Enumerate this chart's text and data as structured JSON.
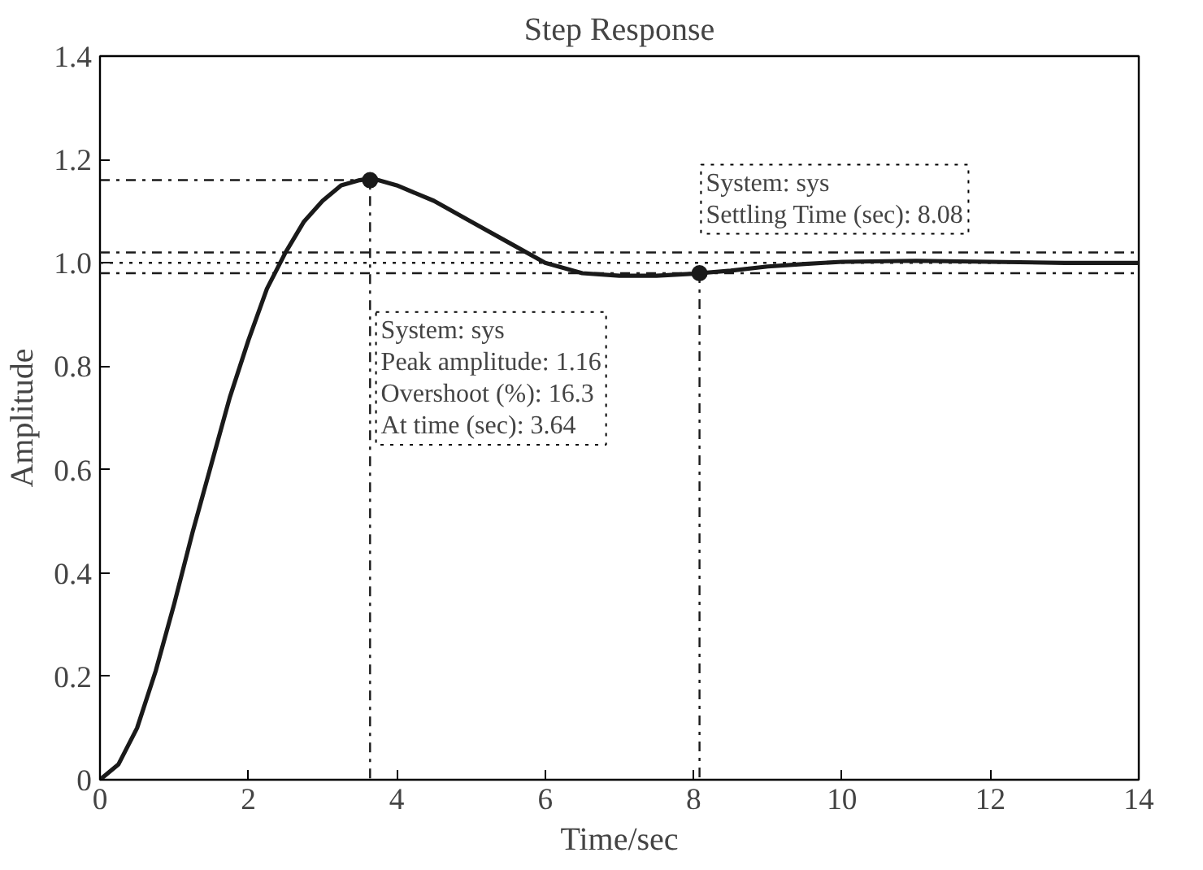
{
  "chart_data": {
    "type": "line",
    "title": "Step Response",
    "xlabel": "Time/sec",
    "ylabel": "Amplitude",
    "x": [
      0,
      0.25,
      0.5,
      0.75,
      1,
      1.25,
      1.5,
      1.75,
      2,
      2.25,
      2.5,
      2.75,
      3,
      3.25,
      3.5,
      3.64,
      3.75,
      4,
      4.5,
      5,
      5.5,
      6,
      6.5,
      7,
      7.5,
      8,
      8.08,
      8.5,
      9,
      9.5,
      10,
      11,
      12,
      13,
      14
    ],
    "series": [
      {
        "color": "#1a1a1a",
        "values": [
          0,
          0.03,
          0.1,
          0.21,
          0.34,
          0.48,
          0.61,
          0.74,
          0.85,
          0.95,
          1.02,
          1.08,
          1.12,
          1.15,
          1.16,
          1.163,
          1.16,
          1.15,
          1.12,
          1.08,
          1.04,
          1.0,
          0.98,
          0.975,
          0.975,
          0.979,
          0.98,
          0.985,
          0.993,
          0.998,
          1.002,
          1.004,
          1.002,
          1.0,
          1.0
        ]
      },
      {
        "type": "line",
        "color": "#1a1a1a",
        "line_style": "dashdot",
        "x": [
          0,
          3.64,
          3.64
        ],
        "values": [
          1.16,
          1.16,
          0
        ]
      },
      {
        "type": "line",
        "color": "#1a1a1a",
        "line_style": "dashdot",
        "x": [
          8.08,
          8.08
        ],
        "values": [
          0.98,
          0
        ]
      },
      {
        "type": "scatter",
        "color": "#1a1a1a",
        "marker": "circle",
        "x": [
          3.64,
          8.08
        ],
        "values": [
          1.16,
          0.98
        ]
      }
    ],
    "xlim": [
      0,
      14
    ],
    "ylim": [
      0,
      1.4
    ],
    "xticks": [
      0,
      2,
      4,
      6,
      8,
      10,
      12,
      14
    ],
    "yticks": [
      0,
      0.2,
      0.4,
      0.6,
      0.8,
      {
        "value": 1.0,
        "label": "1.0"
      },
      1.2,
      1.4
    ],
    "grid": false,
    "marker": "none",
    "line_style": "solid",
    "ref_lines": [
      {
        "axis": "y",
        "value": 1.0,
        "line_style": "dotted",
        "color": "#1a1a1a"
      },
      {
        "axis": "y",
        "value": 1.02,
        "line_style": "dashdot",
        "color": "#1a1a1a"
      },
      {
        "axis": "y",
        "value": 0.98,
        "line_style": "dashdot",
        "color": "#1a1a1a"
      }
    ],
    "annotations": [
      "System: sys\nPeak amplitude: 1.16\nOvershoot (%): 16.3\nAt time (sec): 3.64",
      "System: sys\nSettling Time (sec): 8.08"
    ]
  }
}
